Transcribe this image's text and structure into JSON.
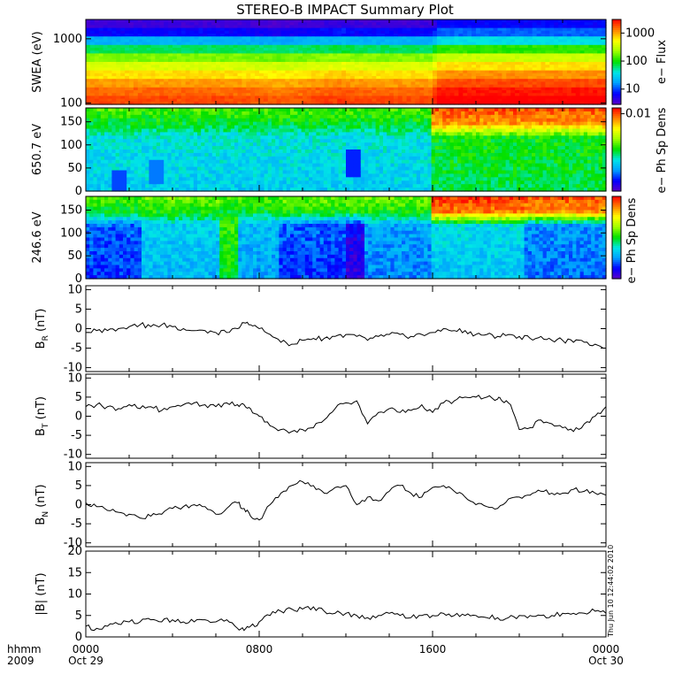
{
  "title": "STEREO-B IMPACT Summary Plot",
  "stamp": "Thu Jun 10 12:44:02 2010",
  "time_axis": {
    "row1_label": "hhmm",
    "row2_label": "2009",
    "ticks": [
      {
        "hours": 0,
        "line1": "0000",
        "line2": "Oct 29"
      },
      {
        "hours": 8,
        "line1": "0800",
        "line2": ""
      },
      {
        "hours": 16,
        "line1": "1600",
        "line2": ""
      },
      {
        "hours": 24,
        "line1": "0000",
        "line2": "Oct 30"
      }
    ]
  },
  "colors": {
    "colormap": [
      "#5a00c8",
      "#0000ff",
      "#00a0ff",
      "#00e6e6",
      "#00e000",
      "#a0ff00",
      "#ffff00",
      "#ff8000",
      "#ff0000"
    ]
  },
  "chart_data": [
    {
      "type": "heatmap",
      "ylabel": "SWEA (eV)",
      "ytick_labels": [
        "1000",
        "100"
      ],
      "log_scale": true,
      "ylim": [
        95,
        2000
      ],
      "colorbar": {
        "label": "e− Flux",
        "tick_labels": [
          "1000",
          "100",
          "10"
        ],
        "tick_fractions": [
          0.16,
          0.49,
          0.82
        ]
      },
      "profile": [
        0.04,
        0.12,
        0.28,
        0.45,
        0.6,
        0.7,
        0.78,
        0.85,
        0.9,
        0.93
      ],
      "column_offset": [
        [
          0,
          0
        ],
        [
          6.7,
          0
        ],
        [
          9,
          -0.02
        ],
        [
          12,
          0.02
        ],
        [
          12.4,
          0
        ],
        [
          16,
          0
        ],
        [
          16.3,
          0.08
        ],
        [
          24,
          0.08
        ]
      ]
    },
    {
      "type": "heatmap",
      "ylabel": "650.7 eV",
      "ytick_labels": [
        "150",
        "100",
        "50",
        "0"
      ],
      "ylim": [
        0,
        180
      ],
      "colorbar": {
        "label": "e− Ph Sp Dens",
        "tick_labels": [
          "0.01"
        ],
        "tick_fractions": [
          0.07
        ]
      },
      "regions": [
        {
          "start": 0,
          "end": 16,
          "top_level": 0.55,
          "bottom_level": 0.32
        },
        {
          "start": 16,
          "end": 24,
          "top_level": 0.92,
          "bottom_level": 0.45
        }
      ],
      "dark_spots": [
        [
          12.4,
          60,
          0.05
        ],
        [
          1.5,
          10,
          0.08
        ],
        [
          3.2,
          40,
          0.12
        ]
      ]
    },
    {
      "type": "heatmap",
      "ylabel": "246.6 eV",
      "ytick_labels": [
        "150",
        "100",
        "50",
        "0"
      ],
      "ylim": [
        0,
        180
      ],
      "colorbar": {
        "label": "e− Ph Sp Dens",
        "tick_labels": [],
        "tick_fractions": []
      },
      "regions": [
        {
          "start": 0,
          "end": 2.6,
          "top_level": 0.55,
          "bottom_level": 0.15
        },
        {
          "start": 2.6,
          "end": 6.2,
          "top_level": 0.58,
          "bottom_level": 0.28
        },
        {
          "start": 6.2,
          "end": 7.0,
          "top_level": 0.55,
          "bottom_level": 0.48
        },
        {
          "start": 7.0,
          "end": 9.0,
          "top_level": 0.55,
          "bottom_level": 0.25
        },
        {
          "start": 9.0,
          "end": 12.0,
          "top_level": 0.58,
          "bottom_level": 0.15
        },
        {
          "start": 12.0,
          "end": 12.9,
          "top_level": 0.58,
          "bottom_level": 0.05
        },
        {
          "start": 12.9,
          "end": 16.0,
          "top_level": 0.58,
          "bottom_level": 0.22
        },
        {
          "start": 16.0,
          "end": 20.2,
          "top_level": 0.95,
          "bottom_level": 0.3
        },
        {
          "start": 20.2,
          "end": 24.0,
          "top_level": 0.92,
          "bottom_level": 0.2
        }
      ]
    },
    {
      "type": "line",
      "ylabel_main": "B",
      "ylabel_sub": "R",
      "ylabel_unit": " (nT)",
      "ylim": [
        -11,
        11
      ],
      "ytick_labels": [
        "10",
        "5",
        "0",
        "-5",
        "-10"
      ],
      "x": [
        0,
        0.5,
        1,
        1.5,
        2,
        2.5,
        3,
        3.5,
        4,
        4.5,
        5,
        5.5,
        6,
        6.5,
        7,
        7.3,
        7.6,
        8,
        8.5,
        9,
        9.5,
        10,
        10.5,
        11,
        11.5,
        12,
        12.5,
        13,
        13.5,
        14,
        14.5,
        15,
        15.5,
        16,
        16.5,
        17,
        17.5,
        18,
        18.5,
        19,
        19.5,
        20,
        20.5,
        21,
        21.5,
        22,
        22.5,
        23,
        23.5,
        24
      ],
      "y": [
        -1,
        -0.5,
        -0.5,
        0,
        0.5,
        1,
        0.5,
        1,
        0.5,
        0,
        -0.5,
        -0.5,
        -1,
        -1,
        0,
        1.5,
        1,
        0,
        -1.5,
        -3.5,
        -4,
        -3,
        -2.5,
        -2.5,
        -2,
        -1.5,
        -2,
        -3,
        -2,
        -1.5,
        -1.5,
        -2,
        -1.5,
        -1,
        0,
        -0.5,
        -0.5,
        -1.5,
        -1.5,
        -2,
        -1.5,
        -2,
        -2.5,
        -2,
        -3,
        -3,
        -3.5,
        -3.5,
        -4,
        -5
      ]
    },
    {
      "type": "line",
      "ylabel_main": "B",
      "ylabel_sub": "T",
      "ylabel_unit": " (nT)",
      "ylim": [
        -11,
        11
      ],
      "ytick_labels": [
        "10",
        "5",
        "0",
        "-5",
        "-10"
      ],
      "x": [
        0,
        0.5,
        1,
        1.5,
        2,
        2.5,
        3,
        3.5,
        4,
        4.5,
        5,
        5.5,
        6,
        6.5,
        7,
        7.3,
        7.6,
        8,
        8.5,
        9,
        9.5,
        10,
        10.5,
        11,
        11.5,
        12,
        12.5,
        13,
        13.5,
        14,
        14.5,
        15,
        15.5,
        16,
        16.5,
        17,
        17.5,
        18,
        18.5,
        19,
        19.2,
        19.6,
        20,
        20.5,
        21,
        21.5,
        22,
        22.5,
        23,
        23.5,
        24
      ],
      "y": [
        2.5,
        3,
        2.5,
        2,
        3,
        2,
        2.5,
        1.5,
        2.5,
        3,
        3.5,
        3,
        2.5,
        3.5,
        3,
        3,
        2,
        0,
        -2.5,
        -3.5,
        -4,
        -3.5,
        -3,
        -1,
        2,
        3.5,
        4,
        -2,
        1,
        2,
        1,
        1.5,
        3,
        1,
        3.5,
        4,
        5,
        5,
        5,
        4.5,
        4,
        3,
        -3.5,
        -3,
        -1,
        -2,
        -3,
        -4,
        -2,
        0,
        2.5
      ]
    },
    {
      "type": "line",
      "ylabel_main": "B",
      "ylabel_sub": "N",
      "ylabel_unit": " (nT)",
      "ylim": [
        -11,
        11
      ],
      "ytick_labels": [
        "10",
        "5",
        "0",
        "-5",
        "-10"
      ],
      "x": [
        0,
        0.5,
        1,
        1.5,
        2,
        2.5,
        3,
        3.5,
        4,
        4.5,
        5,
        5.5,
        6,
        6.5,
        7,
        7.3,
        7.6,
        8,
        8.5,
        9,
        9.5,
        10,
        10.5,
        11,
        11.5,
        12,
        12.5,
        13,
        13.5,
        14,
        14.5,
        15,
        15.5,
        16,
        16.5,
        17,
        17.5,
        18,
        18.5,
        19,
        19.5,
        20,
        20.5,
        21,
        21.5,
        22,
        22.5,
        23,
        23.5,
        24
      ],
      "y": [
        0.5,
        -0.5,
        -1.5,
        -2,
        -2.5,
        -3.5,
        -3,
        -2.5,
        -1,
        -0.5,
        0,
        -0.5,
        -2.5,
        -1,
        0.5,
        -1,
        -3,
        -4,
        0,
        3,
        5,
        6,
        5,
        3,
        4.5,
        5,
        0,
        2,
        1,
        3.5,
        5,
        3,
        2,
        4.5,
        5,
        3.5,
        2,
        0,
        -0.5,
        -1,
        1.5,
        2,
        2.5,
        3.5,
        3,
        3,
        4,
        3.5,
        3,
        2.5
      ]
    },
    {
      "type": "line",
      "ylabel_main": "|B|",
      "ylabel_sub": "",
      "ylabel_unit": " (nT)",
      "ylim": [
        0,
        20
      ],
      "ytick_labels": [
        "20",
        "15",
        "10",
        "5",
        "0"
      ],
      "x": [
        0,
        0.5,
        1,
        1.5,
        2,
        2.5,
        3,
        3.5,
        4,
        4.5,
        5,
        5.5,
        6,
        6.5,
        7,
        7.3,
        7.6,
        8,
        8.5,
        9,
        9.5,
        10,
        10.5,
        11,
        11.5,
        12,
        12.5,
        13,
        13.5,
        14,
        14.5,
        15,
        15.5,
        16,
        16.5,
        17,
        17.5,
        18,
        18.5,
        19,
        19.5,
        20,
        20.5,
        21,
        21.5,
        22,
        22.5,
        23,
        23.5,
        24
      ],
      "y": [
        2.5,
        2,
        2.5,
        3,
        3.5,
        3.5,
        4,
        3.5,
        4,
        3.5,
        3.5,
        4,
        3.5,
        4,
        2,
        1.5,
        2.5,
        3.5,
        5,
        6,
        6.5,
        6.5,
        7,
        6,
        5.5,
        5.5,
        5,
        4.5,
        5,
        5.5,
        5,
        4.5,
        5,
        5,
        5.5,
        5,
        5,
        5,
        4.5,
        4.5,
        4.5,
        5,
        5,
        5,
        5,
        5.5,
        5.5,
        5.5,
        6,
        5.5
      ]
    }
  ]
}
